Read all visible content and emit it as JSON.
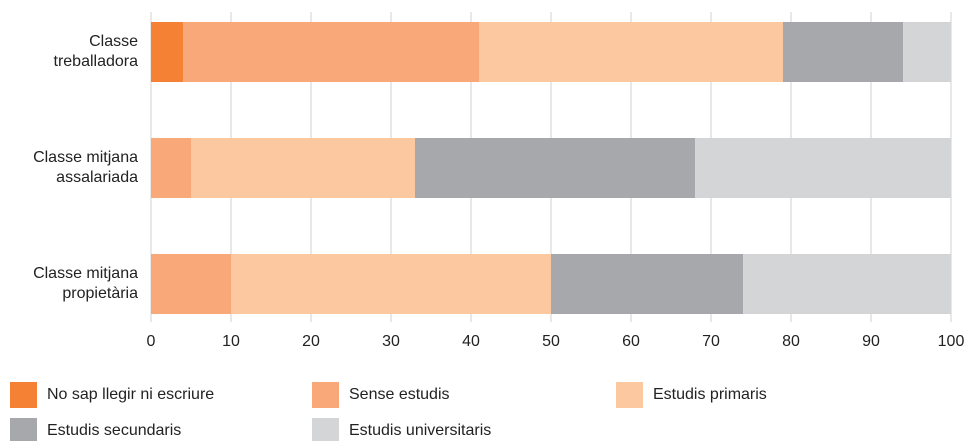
{
  "chart_data": {
    "type": "stacked_barh",
    "categories": [
      "Classe\ntreballadora",
      "Classe mitjana\nassalariada",
      "Classe mitjana\npropietària"
    ],
    "series": [
      {
        "name": "No sap llegir ni escriure",
        "color": "#f58134",
        "values": [
          4,
          0,
          0
        ]
      },
      {
        "name": "Sense estudis",
        "color": "#f9a979",
        "values": [
          37,
          5,
          10
        ]
      },
      {
        "name": "Estudis primaris",
        "color": "#fcc8a0",
        "values": [
          38,
          28,
          40
        ]
      },
      {
        "name": "Estudis secundaris",
        "color": "#a7a8ab",
        "values": [
          15,
          35,
          24
        ]
      },
      {
        "name": "Estudis universitaris",
        "color": "#d4d5d6",
        "values": [
          6,
          32,
          26
        ]
      }
    ],
    "xlim": [
      0,
      100
    ],
    "xticks": [
      0,
      10,
      20,
      30,
      40,
      50,
      60,
      70,
      80,
      90,
      100
    ],
    "grid": true
  }
}
